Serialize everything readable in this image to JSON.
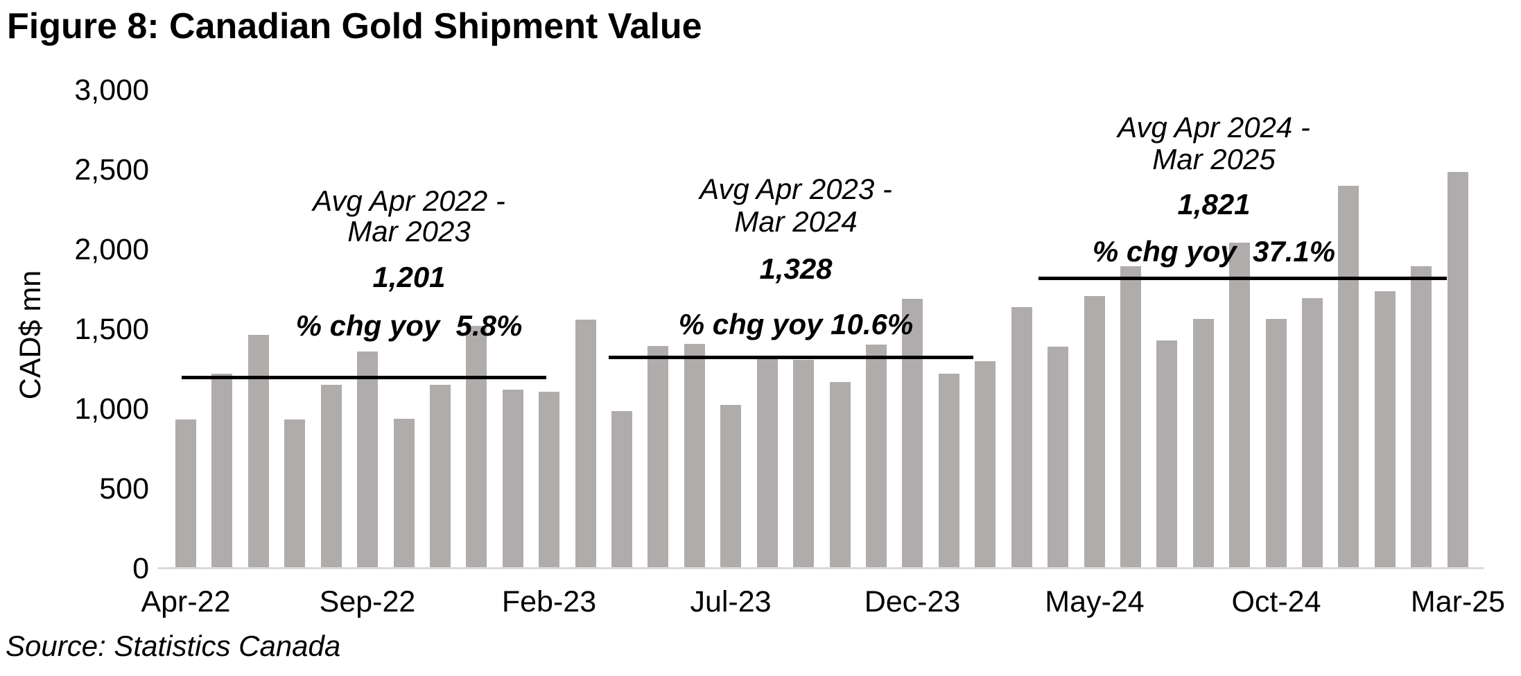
{
  "figure": {
    "title": "Figure 8: Canadian Gold Shipment Value",
    "y_axis_label": "CAD$ mn",
    "source": "Source: Statistics Canada"
  },
  "chart_data": {
    "type": "bar",
    "title": "Figure 8: Canadian Gold Shipment Value",
    "xlabel": "",
    "ylabel": "CAD$ mn",
    "ylim": [
      0,
      3000
    ],
    "grid": false,
    "legend": "none",
    "bar_color": "#afacab",
    "categories": [
      "Apr-22",
      "May-22",
      "Jun-22",
      "Jul-22",
      "Aug-22",
      "Sep-22",
      "Oct-22",
      "Nov-22",
      "Dec-22",
      "Jan-23",
      "Feb-23",
      "Mar-23",
      "Apr-23",
      "May-23",
      "Jun-23",
      "Jul-23",
      "Aug-23",
      "Sep-23",
      "Oct-23",
      "Nov-23",
      "Dec-23",
      "Jan-24",
      "Feb-24",
      "Mar-24",
      "Apr-24",
      "May-24",
      "Jun-24",
      "Jul-24",
      "Aug-24",
      "Sep-24",
      "Oct-24",
      "Nov-24",
      "Dec-24",
      "Jan-25",
      "Feb-25",
      "Mar-25"
    ],
    "values": [
      935,
      1220,
      1465,
      935,
      1150,
      1360,
      940,
      1150,
      1520,
      1120,
      1110,
      1560,
      985,
      1395,
      1410,
      1025,
      1320,
      1310,
      1170,
      1405,
      1690,
      1220,
      1300,
      1640,
      1390,
      1710,
      1895,
      1430,
      1565,
      2045,
      1565,
      1695,
      2400,
      1740,
      1895,
      2485
    ],
    "y_ticks": [
      0,
      500,
      1000,
      1500,
      2000,
      2500,
      3000
    ],
    "y_tick_labels": [
      "0",
      "500",
      "1,000",
      "1,500",
      "2,000",
      "2,500",
      "3,000"
    ],
    "x_tick_indices": [
      0,
      5,
      10,
      15,
      20,
      25,
      30,
      35
    ],
    "x_tick_labels": [
      "Apr-22",
      "Sep-22",
      "Feb-23",
      "Jul-23",
      "Dec-23",
      "May-24",
      "Oct-24",
      "Mar-25"
    ],
    "annotations": [
      {
        "period": [
          "Avg Apr 2022 -",
          "Mar 2023"
        ],
        "avg_label": "1,201",
        "avg_value": 1201,
        "pct_label": "% chg yoy  5.8%",
        "pct_change_yoy": 5.8
      },
      {
        "period": [
          "Avg Apr 2023 -",
          "Mar 2024"
        ],
        "avg_label": "1,328",
        "avg_value": 1328,
        "pct_label": "% chg yoy 10.6%",
        "pct_change_yoy": 10.6
      },
      {
        "period": [
          "Avg Apr 2024 -",
          "Mar 2025"
        ],
        "avg_label": "1,821",
        "avg_value": 1821,
        "pct_label": "% chg yoy  37.1%",
        "pct_change_yoy": 37.1
      }
    ]
  }
}
